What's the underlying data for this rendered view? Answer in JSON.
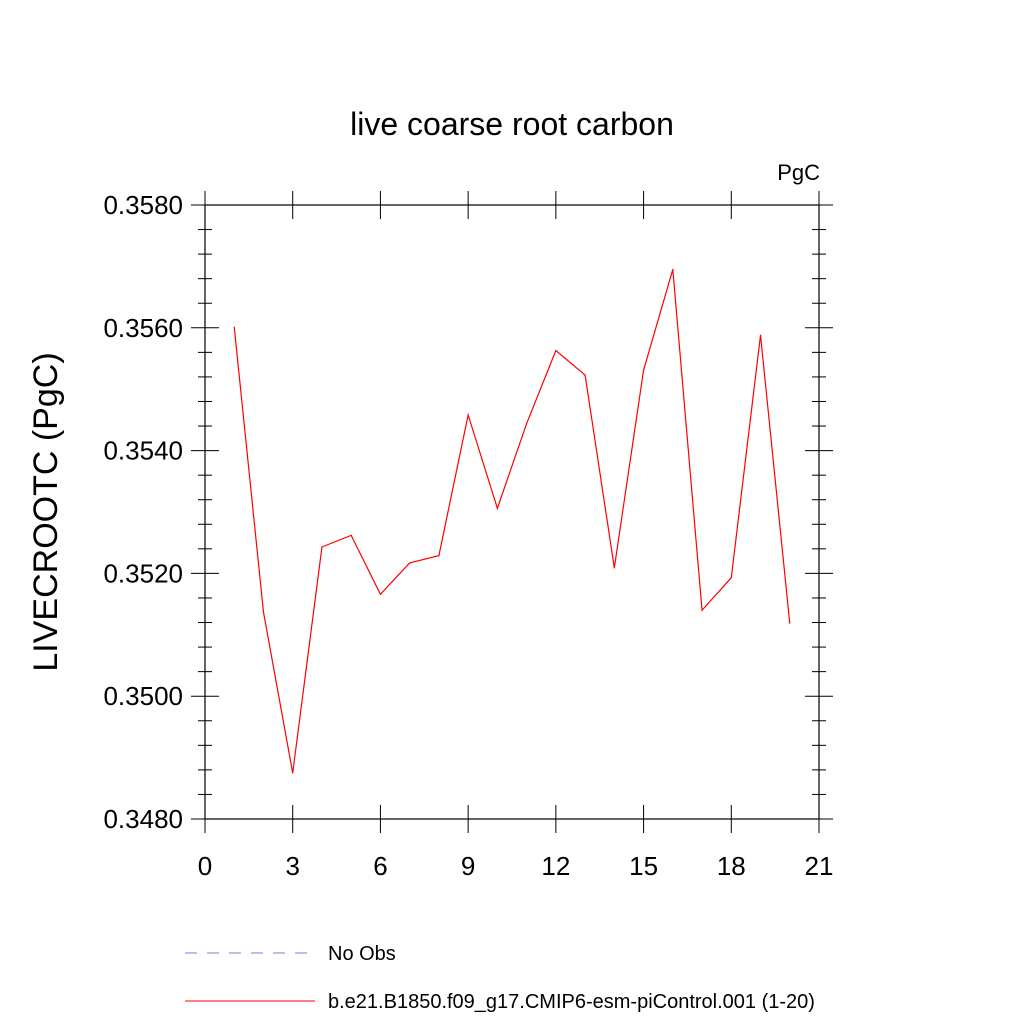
{
  "chart_data": {
    "type": "line",
    "title": "live coarse root carbon",
    "units": "PgC",
    "ylabel": "LIVECROOTC  (PgC)",
    "xlabel": "",
    "xlim": [
      0,
      21
    ],
    "ylim": [
      0.348,
      0.358
    ],
    "x_ticks": [
      0,
      3,
      6,
      9,
      12,
      15,
      18,
      21
    ],
    "x_tick_labels": [
      "0",
      "3",
      "6",
      "9",
      "12",
      "15",
      "18",
      "21"
    ],
    "y_ticks": [
      0.348,
      0.35,
      0.352,
      0.354,
      0.356,
      0.358
    ],
    "y_tick_labels": [
      "0.3480",
      "0.3500",
      "0.3520",
      "0.3540",
      "0.3560",
      "0.3580"
    ],
    "grid": false,
    "legend_position": "bottom",
    "series": [
      {
        "name": "b.e21.B1850.f09_g17.CMIP6-esm-piControl.001 (1-20)",
        "color": "#ff0000",
        "style": "solid",
        "x": [
          1,
          2,
          3,
          4,
          5,
          6,
          7,
          8,
          9,
          10,
          11,
          12,
          13,
          14,
          15,
          16,
          17,
          18,
          19,
          20
        ],
        "y": [
          0.35601,
          0.35137,
          0.34875,
          0.35243,
          0.35262,
          0.35166,
          0.35217,
          0.35229,
          0.35458,
          0.35306,
          0.35444,
          0.35563,
          0.35523,
          0.35209,
          0.35531,
          0.35695,
          0.3514,
          0.35193,
          0.35588,
          0.35119
        ]
      }
    ],
    "legend": [
      {
        "label": "No Obs",
        "color": "#7b7bcf",
        "style": "dashed"
      },
      {
        "label": "b.e21.B1850.f09_g17.CMIP6-esm-piControl.001 (1-20)",
        "color": "#ff0000",
        "style": "solid"
      }
    ]
  }
}
